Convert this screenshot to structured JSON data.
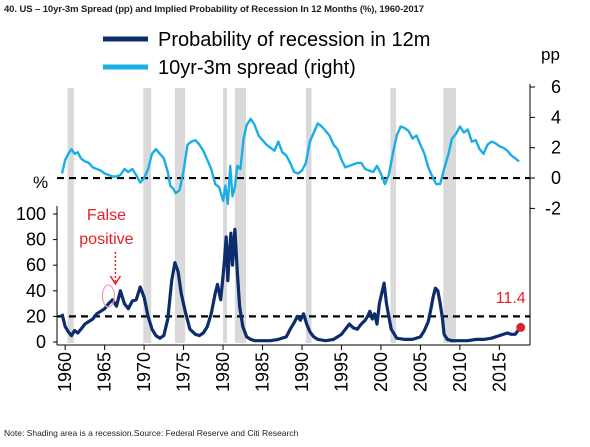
{
  "title": "40. US – 10yr-3m Spread (pp) and Implied Probability of Recession In 12 Months (%), 1960-2017",
  "note": "Note: Shading area is a recession.Source: Federal Reserve and Citi Research",
  "chart_data": {
    "type": "line",
    "legend": {
      "placement": "top",
      "items": [
        {
          "label": "Probability of recession in 12m",
          "color": "#0d2c6b"
        },
        {
          "label": "10yr-3m spread (right)",
          "color": "#1aaee6"
        }
      ]
    },
    "x_ticks": [
      "1960",
      "1965",
      "1970",
      "1975",
      "1980",
      "1985",
      "1990",
      "1995",
      "2000",
      "2005",
      "2010",
      "2015"
    ],
    "xlim": [
      1959.6,
      2018.5
    ],
    "left_axis": {
      "unit": "%",
      "ticks": [
        "0",
        "20",
        "40",
        "60",
        "80",
        "100"
      ],
      "ylim": [
        0,
        100
      ]
    },
    "right_axis": {
      "unit": "pp",
      "ticks": [
        "-2",
        "0",
        "2",
        "4",
        "6"
      ],
      "ylim": [
        -2.5,
        6
      ]
    },
    "recessions": [
      [
        1960.3,
        1961.1
      ],
      [
        1969.9,
        1970.9
      ],
      [
        1973.9,
        1975.2
      ],
      [
        1980.0,
        1980.5
      ],
      [
        1981.5,
        1982.9
      ],
      [
        1990.5,
        1991.2
      ],
      [
        2001.2,
        2001.9
      ],
      [
        2007.9,
        2009.5
      ]
    ],
    "series": [
      {
        "name": "10yr-3m spread (right)",
        "axis": "right",
        "x": [
          1959.6,
          1960.0,
          1960.4,
          1960.8,
          1961.2,
          1961.6,
          1962.0,
          1962.5,
          1963.0,
          1963.5,
          1964.0,
          1964.5,
          1965.0,
          1965.5,
          1966.0,
          1966.5,
          1967.0,
          1967.5,
          1968.0,
          1968.5,
          1969.0,
          1969.5,
          1970.0,
          1970.5,
          1971.0,
          1971.5,
          1972.0,
          1972.5,
          1973.0,
          1973.3,
          1973.7,
          1974.0,
          1974.5,
          1975.0,
          1975.5,
          1976.0,
          1976.5,
          1977.0,
          1977.5,
          1978.0,
          1978.5,
          1979.0,
          1979.5,
          1980.0,
          1980.3,
          1980.6,
          1980.9,
          1981.2,
          1981.5,
          1981.8,
          1982.2,
          1982.6,
          1983.0,
          1983.5,
          1984.0,
          1984.5,
          1985.0,
          1985.5,
          1986.0,
          1986.5,
          1987.0,
          1987.5,
          1988.0,
          1988.5,
          1989.0,
          1989.5,
          1990.0,
          1990.5,
          1991.0,
          1991.5,
          1992.0,
          1992.5,
          1993.0,
          1993.5,
          1994.0,
          1994.5,
          1995.0,
          1995.5,
          1996.0,
          1996.5,
          1997.0,
          1997.5,
          1998.0,
          1998.5,
          1999.0,
          1999.5,
          2000.0,
          2000.5,
          2001.0,
          2001.5,
          2002.0,
          2002.5,
          2003.0,
          2003.5,
          2004.0,
          2004.5,
          2005.0,
          2005.5,
          2006.0,
          2006.5,
          2007.0,
          2007.5,
          2008.0,
          2008.5,
          2009.0,
          2009.5,
          2010.0,
          2010.5,
          2011.0,
          2011.5,
          2012.0,
          2012.5,
          2013.0,
          2013.5,
          2014.0,
          2014.5,
          2015.0,
          2015.5,
          2016.0,
          2016.5,
          2017.0,
          2017.5
        ],
        "values": [
          0.3,
          1.2,
          1.6,
          1.9,
          1.6,
          1.7,
          1.3,
          1.1,
          1.0,
          0.7,
          0.6,
          0.5,
          0.3,
          0.2,
          0.1,
          0.1,
          0.2,
          0.6,
          0.4,
          0.6,
          0.2,
          -0.3,
          0.0,
          0.6,
          1.6,
          1.9,
          1.6,
          1.3,
          0.4,
          -0.5,
          -0.7,
          -1.0,
          -0.8,
          0.5,
          2.2,
          2.4,
          2.5,
          2.2,
          1.8,
          1.2,
          0.6,
          -0.4,
          -0.6,
          -1.5,
          -0.5,
          -1.7,
          0.8,
          -1.2,
          -0.6,
          0.8,
          0.6,
          2.6,
          3.5,
          3.9,
          3.5,
          2.8,
          2.5,
          2.2,
          2.0,
          1.8,
          2.4,
          1.7,
          1.5,
          1.0,
          0.4,
          0.3,
          0.5,
          1.0,
          2.4,
          3.0,
          3.6,
          3.4,
          3.1,
          2.8,
          2.2,
          1.9,
          1.2,
          0.7,
          0.8,
          0.9,
          1.0,
          1.0,
          0.6,
          0.5,
          0.4,
          0.8,
          0.3,
          -0.4,
          0.2,
          1.6,
          2.8,
          3.4,
          3.3,
          3.1,
          2.6,
          2.8,
          2.2,
          1.6,
          0.7,
          0.1,
          -0.4,
          -0.4,
          0.6,
          1.5,
          2.6,
          2.9,
          3.4,
          3.0,
          3.2,
          2.4,
          2.5,
          1.9,
          1.6,
          2.2,
          2.4,
          2.3,
          2.1,
          2.0,
          1.8,
          1.5,
          1.3,
          1.1
        ]
      },
      {
        "name": "Probability of recession in 12m",
        "axis": "left",
        "x": [
          1959.6,
          1960.0,
          1960.4,
          1960.8,
          1961.2,
          1961.6,
          1962.0,
          1962.5,
          1963.0,
          1963.5,
          1964.0,
          1964.5,
          1965.0,
          1965.5,
          1966.0,
          1966.5,
          1967.0,
          1967.5,
          1968.0,
          1968.5,
          1969.0,
          1969.5,
          1970.0,
          1970.5,
          1971.0,
          1971.5,
          1972.0,
          1972.5,
          1973.0,
          1973.5,
          1973.9,
          1974.3,
          1974.7,
          1975.2,
          1975.8,
          1976.5,
          1977.0,
          1977.5,
          1978.0,
          1978.5,
          1979.0,
          1979.3,
          1979.7,
          1980.0,
          1980.2,
          1980.4,
          1980.6,
          1980.8,
          1981.0,
          1981.2,
          1981.5,
          1981.8,
          1982.1,
          1982.5,
          1983.0,
          1983.5,
          1984.0,
          1985.0,
          1986.0,
          1987.0,
          1988.0,
          1988.5,
          1989.0,
          1989.4,
          1989.8,
          1990.2,
          1990.6,
          1991.0,
          1991.5,
          1992.0,
          1993.0,
          1994.0,
          1995.0,
          1995.5,
          1996.0,
          1996.5,
          1997.0,
          1997.5,
          1998.0,
          1998.3,
          1998.6,
          1998.9,
          1999.2,
          1999.5,
          1999.8,
          2000.1,
          2000.4,
          2000.7,
          2001.0,
          2001.3,
          2001.7,
          2002.0,
          2003.0,
          2004.0,
          2005.0,
          2005.5,
          2006.0,
          2006.3,
          2006.6,
          2006.9,
          2007.2,
          2007.5,
          2007.8,
          2008.0,
          2008.4,
          2009.0,
          2010.0,
          2011.0,
          2012.0,
          2013.0,
          2014.0,
          2015.0,
          2016.0,
          2016.5,
          2017.0,
          2017.5
        ],
        "values": [
          22,
          12,
          8,
          5,
          9,
          7,
          10,
          14,
          16,
          18,
          22,
          24,
          26,
          30,
          33,
          28,
          40,
          30,
          26,
          32,
          33,
          43,
          35,
          20,
          10,
          5,
          3,
          5,
          18,
          48,
          62,
          55,
          38,
          24,
          10,
          6,
          5,
          7,
          12,
          22,
          38,
          45,
          33,
          52,
          65,
          82,
          48,
          70,
          85,
          60,
          88,
          55,
          28,
          12,
          4,
          2,
          1,
          1,
          1,
          2,
          4,
          10,
          15,
          20,
          17,
          22,
          14,
          8,
          4,
          2,
          1,
          2,
          6,
          10,
          14,
          11,
          10,
          14,
          17,
          20,
          24,
          18,
          22,
          14,
          30,
          38,
          46,
          30,
          20,
          10,
          6,
          3,
          2,
          2,
          4,
          9,
          16,
          25,
          35,
          42,
          40,
          30,
          18,
          6,
          2,
          1,
          1,
          1,
          2,
          2,
          3,
          5,
          7,
          6,
          6,
          10
        ]
      }
    ],
    "reference_lines": [
      {
        "axis": "left",
        "value": 20,
        "style": "dashed"
      },
      {
        "axis": "right",
        "value": 0,
        "style": "dashed"
      }
    ],
    "annotations": [
      {
        "text": "False",
        "near_x": 1967.0
      },
      {
        "text": "positive",
        "near_x": 1967.0
      },
      {
        "text": "11.4",
        "near_x": 2017.7,
        "value": 11.4
      }
    ],
    "end_point": {
      "x": 2017.7,
      "value": 11.4,
      "color": "#d8232a"
    }
  }
}
